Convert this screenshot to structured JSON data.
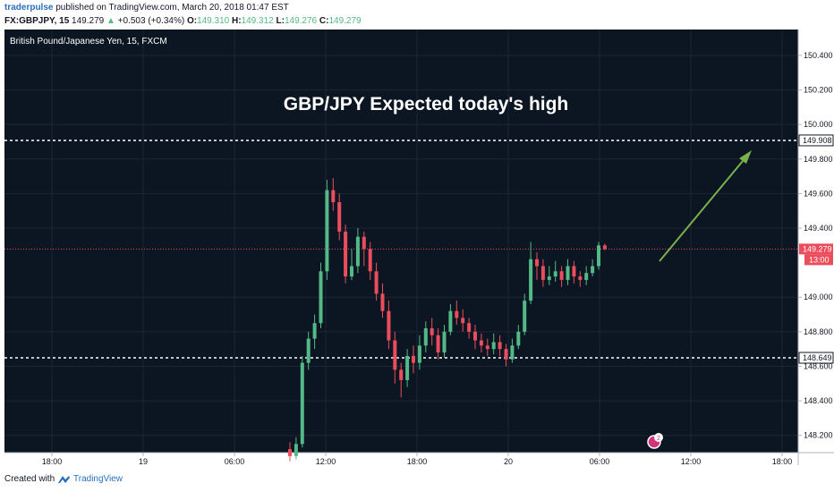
{
  "header": {
    "username": "traderpulse",
    "published_text": "published on TradingView.com, March 20, 2018 01:47 EST",
    "symbol_interval": "FX:GBPJPY, 15",
    "last_price": "149.279",
    "change_arrow": "▲",
    "change_text": "+0.503 (+0.34%)",
    "open_label": "O:",
    "open_value": "149.310",
    "high_label": "H:",
    "high_value": "149.312",
    "low_label": "L:",
    "low_value": "149.276",
    "close_label": "C:",
    "close_value": "149.279"
  },
  "chart_data": {
    "type": "candlestick",
    "title": "GBP/JPY Expected today's high",
    "instrument_label": "British Pound/Japanese Yen, 15, FXCM",
    "x_tick_labels": [
      "18:00",
      "19",
      "06:00",
      "12:00",
      "18:00",
      "20",
      "06:00",
      "12:00",
      "18:00"
    ],
    "y_tick_labels": [
      "150.400",
      "150.200",
      "150.000",
      "149.800",
      "149.600",
      "149.400",
      "149.000",
      "148.800",
      "148.600",
      "148.400",
      "148.200"
    ],
    "ylim": [
      148.1,
      150.55
    ],
    "price_levels": {
      "upper_dotted": "149.908",
      "last_price": "149.279",
      "countdown": "13:00",
      "lower_dotted": "148.649"
    },
    "candles": [
      [
        148.12,
        148.08,
        148.16,
        148.05
      ],
      [
        148.08,
        148.15,
        148.19,
        148.06
      ],
      [
        148.15,
        148.62,
        148.66,
        148.13
      ],
      [
        148.62,
        148.76,
        148.8,
        148.58
      ],
      [
        148.76,
        148.85,
        148.9,
        148.7
      ],
      [
        148.85,
        149.15,
        149.2,
        148.82
      ],
      [
        149.15,
        149.62,
        149.68,
        149.1
      ],
      [
        149.62,
        149.55,
        149.69,
        149.5
      ],
      [
        149.55,
        149.38,
        149.6,
        149.33
      ],
      [
        149.38,
        149.12,
        149.42,
        149.08
      ],
      [
        149.12,
        149.18,
        149.28,
        149.1
      ],
      [
        149.18,
        149.35,
        149.4,
        149.14
      ],
      [
        149.35,
        149.28,
        149.38,
        149.18
      ],
      [
        149.28,
        149.15,
        149.32,
        149.1
      ],
      [
        149.15,
        149.02,
        149.2,
        148.98
      ],
      [
        149.02,
        148.92,
        149.08,
        148.88
      ],
      [
        148.92,
        148.75,
        148.98,
        148.7
      ],
      [
        148.75,
        148.58,
        148.8,
        148.5
      ],
      [
        148.58,
        148.52,
        148.62,
        148.42
      ],
      [
        148.52,
        148.66,
        148.7,
        148.48
      ],
      [
        148.66,
        148.62,
        148.72,
        148.56
      ],
      [
        148.62,
        148.72,
        148.78,
        148.58
      ],
      [
        148.72,
        148.82,
        148.86,
        148.68
      ],
      [
        148.82,
        148.78,
        148.88,
        148.72
      ],
      [
        148.78,
        148.68,
        148.82,
        148.64
      ],
      [
        148.68,
        148.8,
        148.84,
        148.65
      ],
      [
        148.8,
        148.92,
        148.96,
        148.78
      ],
      [
        148.92,
        148.88,
        148.98,
        148.84
      ],
      [
        148.88,
        148.85,
        148.93,
        148.8
      ],
      [
        148.85,
        148.8,
        148.88,
        148.76
      ],
      [
        148.8,
        148.75,
        148.84,
        148.7
      ],
      [
        148.75,
        148.72,
        148.79,
        148.68
      ],
      [
        148.72,
        148.7,
        148.76,
        148.66
      ],
      [
        148.7,
        148.74,
        148.79,
        148.67
      ],
      [
        148.74,
        148.7,
        148.78,
        148.66
      ],
      [
        148.7,
        148.64,
        148.73,
        148.6
      ],
      [
        148.64,
        148.72,
        148.76,
        148.62
      ],
      [
        148.72,
        148.8,
        148.84,
        148.7
      ],
      [
        148.8,
        148.98,
        149.02,
        148.78
      ],
      [
        148.98,
        149.22,
        149.32,
        148.96
      ],
      [
        149.22,
        149.18,
        149.26,
        149.1
      ],
      [
        149.18,
        149.1,
        149.22,
        149.06
      ],
      [
        149.1,
        149.12,
        149.18,
        149.07
      ],
      [
        149.12,
        149.15,
        149.21,
        149.09
      ],
      [
        149.15,
        149.1,
        149.18,
        149.06
      ],
      [
        149.1,
        149.18,
        149.22,
        149.07
      ],
      [
        149.18,
        149.12,
        149.21,
        149.08
      ],
      [
        149.12,
        149.1,
        149.15,
        149.06
      ],
      [
        149.1,
        149.14,
        149.18,
        149.07
      ],
      [
        149.14,
        149.18,
        149.22,
        149.12
      ],
      [
        149.18,
        149.3,
        149.32,
        149.16
      ],
      [
        149.3,
        149.28,
        149.31,
        149.27
      ]
    ],
    "colors": {
      "background": "#0c1622",
      "grid": "#1d2733",
      "up": "#53b987",
      "down": "#eb4d5c",
      "level_line": "#ffffff",
      "last_price_line": "#eb4d5c",
      "arrow": "#7bb04a",
      "text": "#ffffff",
      "axis_text": "#131722"
    }
  },
  "footer": {
    "created_with": "Created with",
    "brand": "TradingView"
  },
  "icons": {
    "footer_logo": "tradingview-cloud-icon",
    "event_marker": "event-marker-icon",
    "event_badge": "2"
  }
}
